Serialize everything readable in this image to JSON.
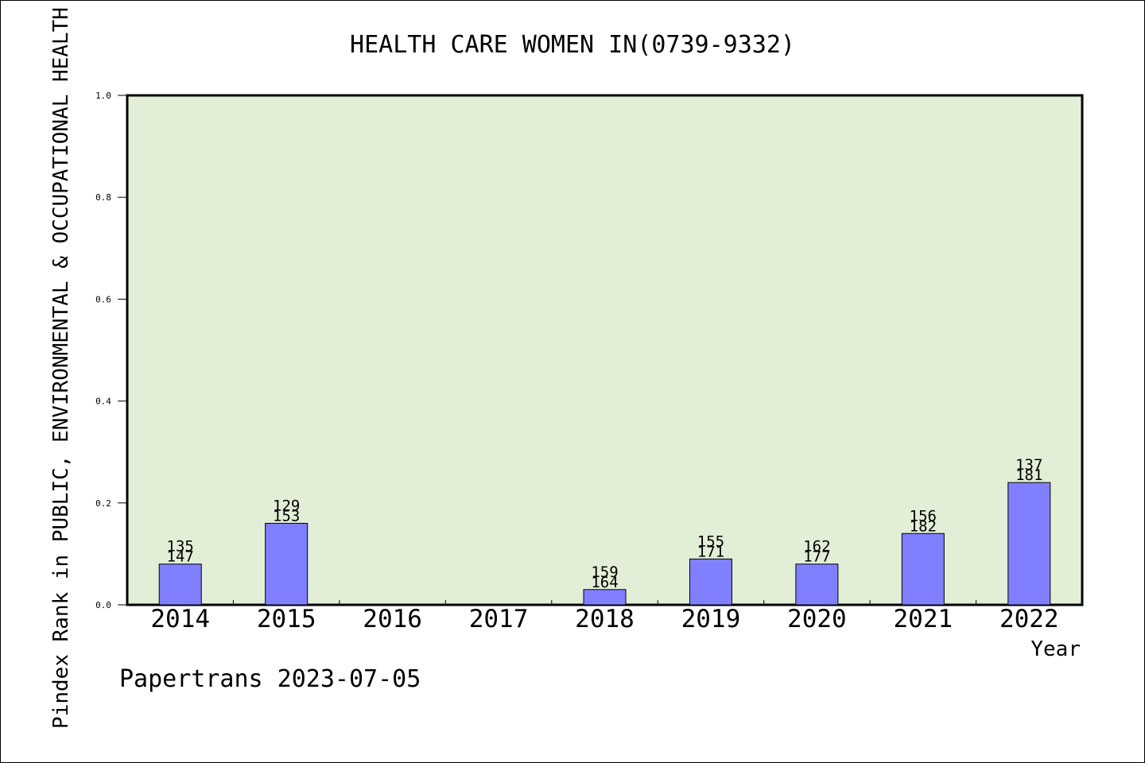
{
  "chart_data": {
    "type": "bar",
    "title": "HEALTH CARE WOMEN IN(0739-9332)",
    "xlabel": "Year",
    "ylabel": "Pindex Rank in PUBLIC, ENVIRONMENTAL & OCCUPATIONAL HEALTH",
    "ylim": [
      0,
      1.0
    ],
    "yticks": [
      "0.0",
      "0.2",
      "0.4",
      "0.6",
      "0.8",
      "1.0"
    ],
    "categories": [
      "2014",
      "2015",
      "2016",
      "2017",
      "2018",
      "2019",
      "2020",
      "2021",
      "2022"
    ],
    "values": [
      0.08,
      0.16,
      null,
      null,
      0.03,
      0.09,
      0.08,
      0.14,
      0.24
    ],
    "label_top": [
      "135",
      "129",
      "",
      "",
      "159",
      "155",
      "162",
      "156",
      "137"
    ],
    "label_bottom": [
      "147",
      "153",
      "",
      "",
      "164",
      "171",
      "177",
      "182",
      "181"
    ],
    "grid": false,
    "bar_color": "#8080ff",
    "plot_background": "#e2efd6",
    "footer": "Papertrans 2023-07-05"
  }
}
